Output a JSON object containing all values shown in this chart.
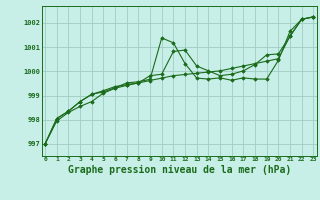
{
  "bg_color": "#c8eee8",
  "line_color": "#1a6b1a",
  "grid_color": "#a0ccc4",
  "xlabel": "Graphe pression niveau de la mer (hPa)",
  "xlabel_fontsize": 7,
  "yticks": [
    997,
    998,
    999,
    1000,
    1001,
    1002
  ],
  "xticks": [
    0,
    1,
    2,
    3,
    4,
    5,
    6,
    7,
    8,
    9,
    10,
    11,
    12,
    13,
    14,
    15,
    16,
    17,
    18,
    19,
    20,
    21,
    22,
    23
  ],
  "xlim": [
    -0.3,
    23.3
  ],
  "ylim": [
    996.5,
    1002.7
  ],
  "series1": [
    997.0,
    997.95,
    998.3,
    998.55,
    998.75,
    999.1,
    999.3,
    999.42,
    999.52,
    999.62,
    999.72,
    999.82,
    999.87,
    999.92,
    999.97,
    1000.02,
    1000.12,
    1000.22,
    1000.32,
    1000.42,
    1000.52,
    1001.45,
    1002.15,
    1002.25
  ],
  "series2": [
    997.0,
    998.05,
    998.35,
    998.75,
    999.05,
    999.15,
    999.32,
    999.52,
    999.57,
    999.67,
    1001.38,
    1001.18,
    1000.32,
    999.72,
    999.68,
    999.73,
    999.63,
    999.73,
    999.68,
    999.68,
    1000.45,
    1001.65,
    1002.15,
    1002.25
  ],
  "series3": [
    997.0,
    998.05,
    998.35,
    998.75,
    999.05,
    999.2,
    999.37,
    999.45,
    999.52,
    999.82,
    999.88,
    1000.82,
    1000.88,
    1000.22,
    1000.02,
    999.82,
    999.88,
    1000.02,
    1000.28,
    1000.68,
    1000.72,
    1001.45,
    1002.15,
    1002.25
  ]
}
